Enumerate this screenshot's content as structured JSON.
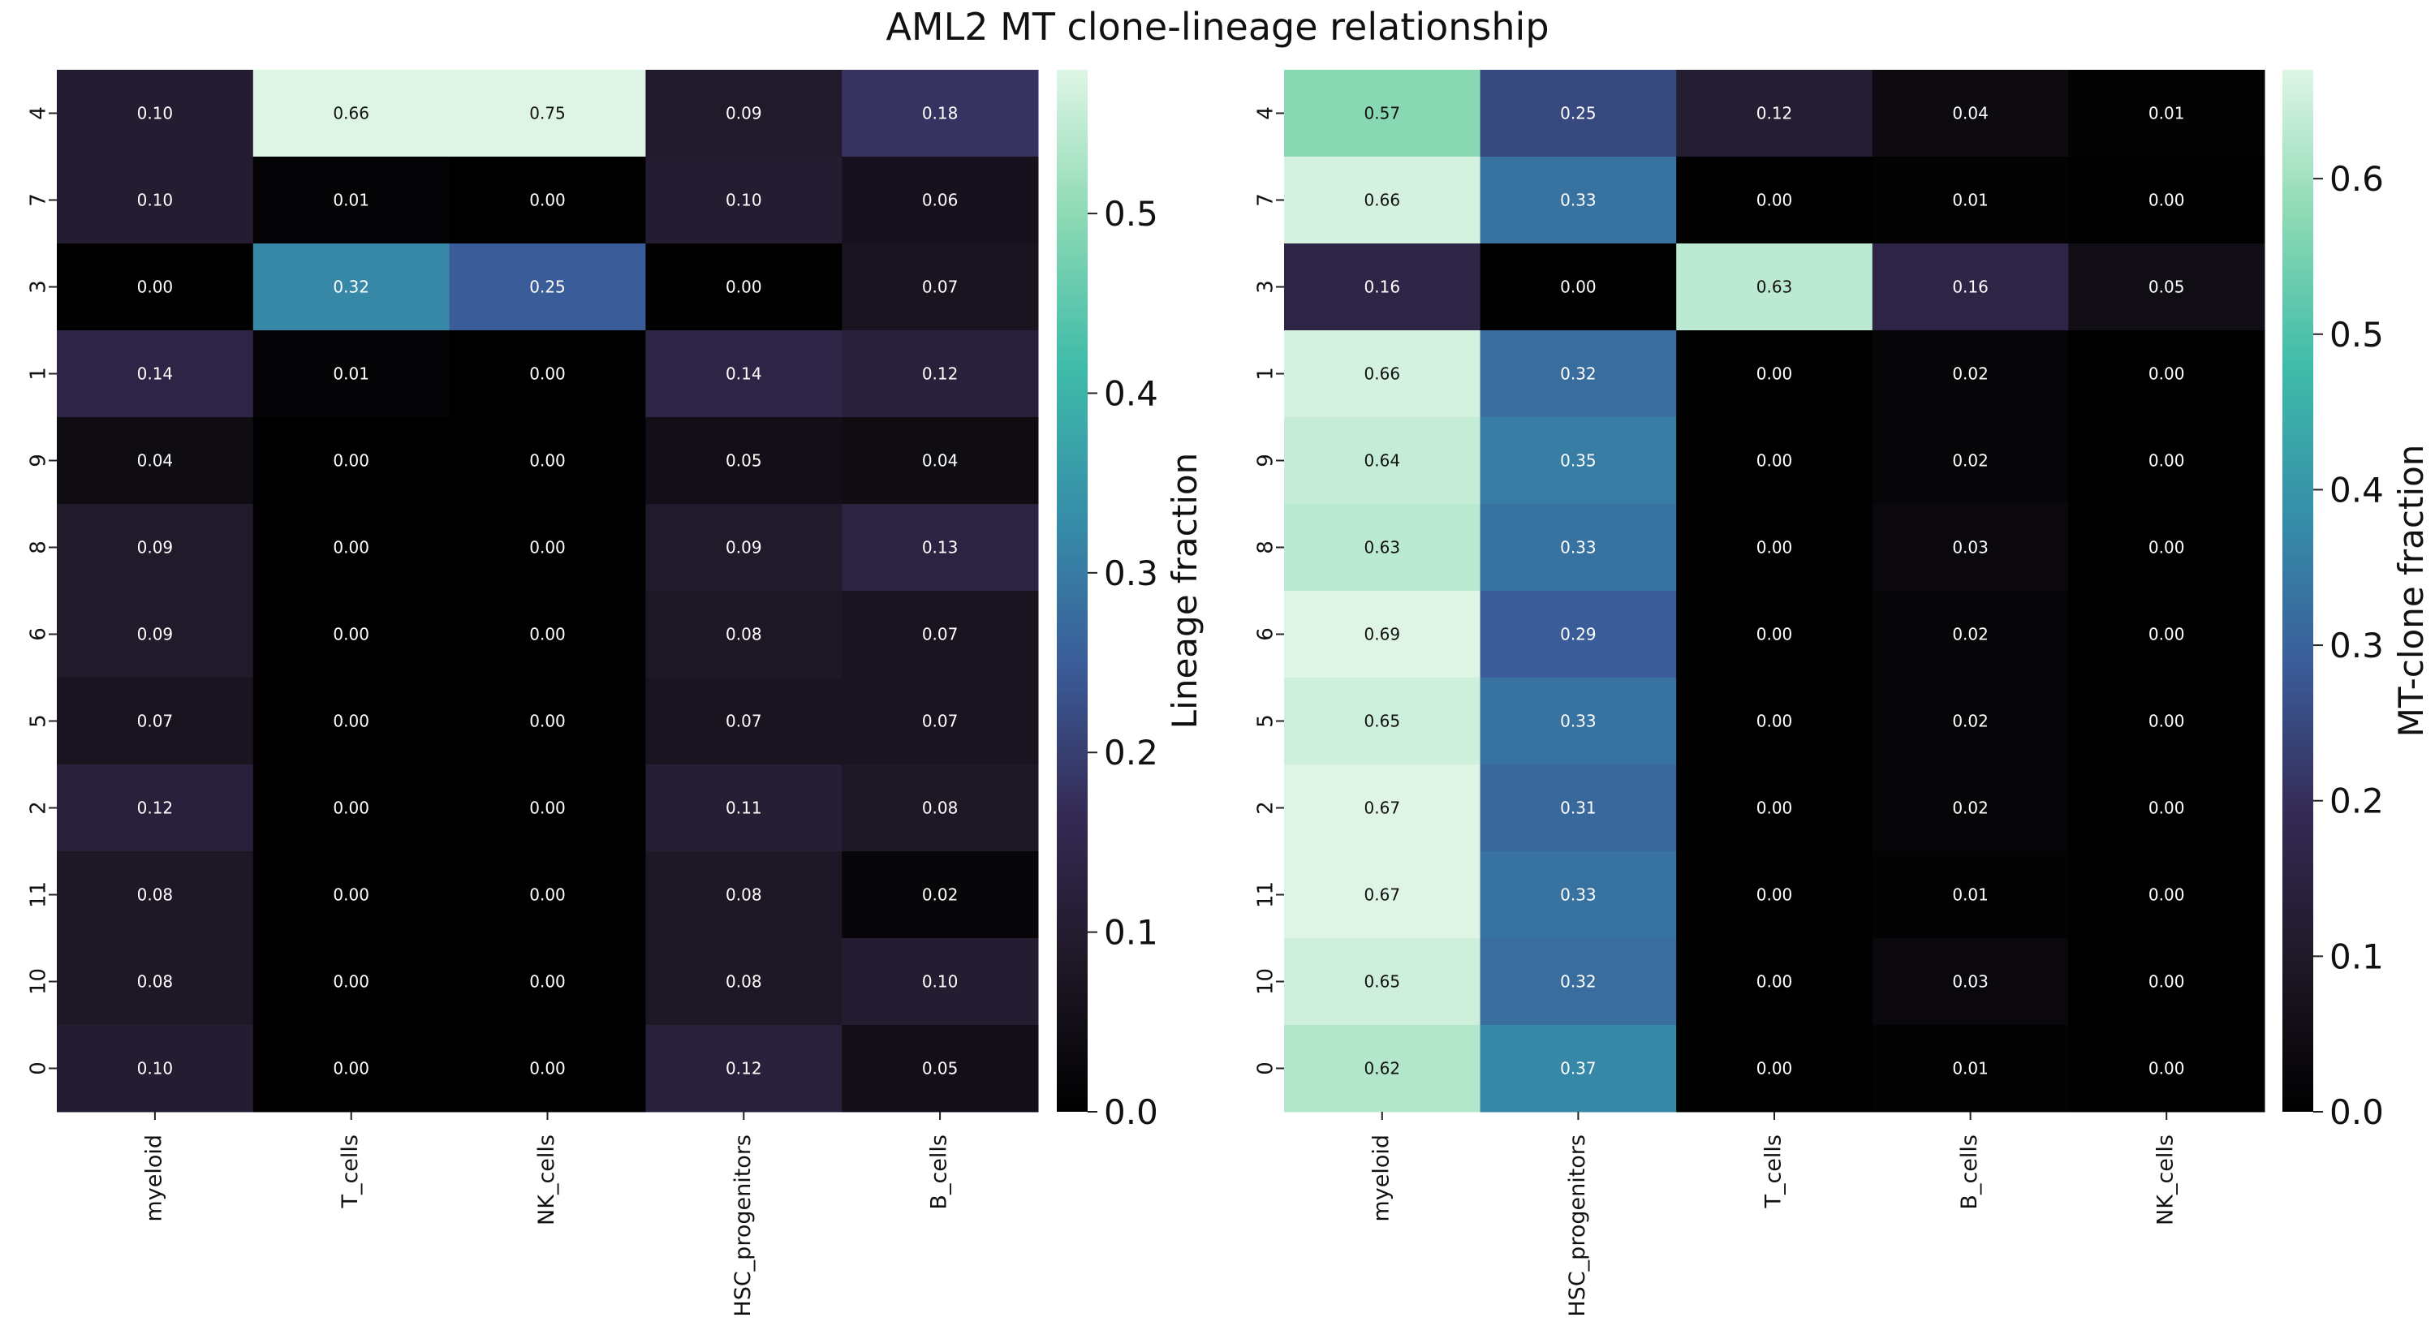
{
  "title": "AML2 MT clone-lineage relationship",
  "colormap": [
    "#000000",
    "#1f1826",
    "#352a55",
    "#3a5c99",
    "#368ea9",
    "#3fbba9",
    "#8bd9b4",
    "#def5e5"
  ],
  "chart_data": [
    {
      "type": "heatmap",
      "title": "",
      "xlabel": "",
      "ylabel": "",
      "rows": [
        "4",
        "7",
        "3",
        "1",
        "9",
        "8",
        "6",
        "5",
        "2",
        "11",
        "10",
        "0"
      ],
      "columns": [
        "myeloid",
        "T_cells",
        "NK_cells",
        "HSC_progenitors",
        "B_cells"
      ],
      "values": [
        [
          0.1,
          0.66,
          0.75,
          0.09,
          0.18
        ],
        [
          0.1,
          0.01,
          0.0,
          0.1,
          0.06
        ],
        [
          0.0,
          0.32,
          0.25,
          0.0,
          0.07
        ],
        [
          0.14,
          0.01,
          0.0,
          0.14,
          0.12
        ],
        [
          0.04,
          0.0,
          0.0,
          0.05,
          0.04
        ],
        [
          0.09,
          0.0,
          0.0,
          0.09,
          0.13
        ],
        [
          0.09,
          0.0,
          0.0,
          0.08,
          0.07
        ],
        [
          0.07,
          0.0,
          0.0,
          0.07,
          0.07
        ],
        [
          0.12,
          0.0,
          0.0,
          0.11,
          0.08
        ],
        [
          0.08,
          0.0,
          0.0,
          0.08,
          0.02
        ],
        [
          0.08,
          0.0,
          0.0,
          0.08,
          0.1
        ],
        [
          0.1,
          0.0,
          0.0,
          0.12,
          0.05
        ]
      ],
      "colorbar": {
        "label": "Lineage fraction",
        "vmin": 0.0,
        "vmax": 0.58,
        "ticks": [
          0.0,
          0.1,
          0.2,
          0.3,
          0.4,
          0.5
        ],
        "tick_labels": [
          "0.0",
          "0.1",
          "0.2",
          "0.3",
          "0.4",
          "0.5"
        ]
      }
    },
    {
      "type": "heatmap",
      "title": "",
      "xlabel": "",
      "ylabel": "",
      "rows": [
        "4",
        "7",
        "3",
        "1",
        "9",
        "8",
        "6",
        "5",
        "2",
        "11",
        "10",
        "0"
      ],
      "columns": [
        "myeloid",
        "HSC_progenitors",
        "T_cells",
        "B_cells",
        "NK_cells"
      ],
      "values": [
        [
          0.57,
          0.25,
          0.12,
          0.04,
          0.01
        ],
        [
          0.66,
          0.33,
          0.0,
          0.01,
          0.0
        ],
        [
          0.16,
          0.0,
          0.63,
          0.16,
          0.05
        ],
        [
          0.66,
          0.32,
          0.0,
          0.02,
          0.0
        ],
        [
          0.64,
          0.35,
          0.0,
          0.02,
          0.0
        ],
        [
          0.63,
          0.33,
          0.0,
          0.03,
          0.0
        ],
        [
          0.69,
          0.29,
          0.0,
          0.02,
          0.0
        ],
        [
          0.65,
          0.33,
          0.0,
          0.02,
          0.0
        ],
        [
          0.67,
          0.31,
          0.0,
          0.02,
          0.0
        ],
        [
          0.67,
          0.33,
          0.0,
          0.01,
          0.0
        ],
        [
          0.65,
          0.32,
          0.0,
          0.03,
          0.0
        ],
        [
          0.62,
          0.37,
          0.0,
          0.01,
          0.0
        ]
      ],
      "colorbar": {
        "label": "MT-clone fraction",
        "vmin": 0.0,
        "vmax": 0.67,
        "ticks": [
          0.0,
          0.1,
          0.2,
          0.3,
          0.4,
          0.5,
          0.6
        ],
        "tick_labels": [
          "0.0",
          "0.1",
          "0.2",
          "0.3",
          "0.4",
          "0.5",
          "0.6"
        ]
      }
    }
  ]
}
